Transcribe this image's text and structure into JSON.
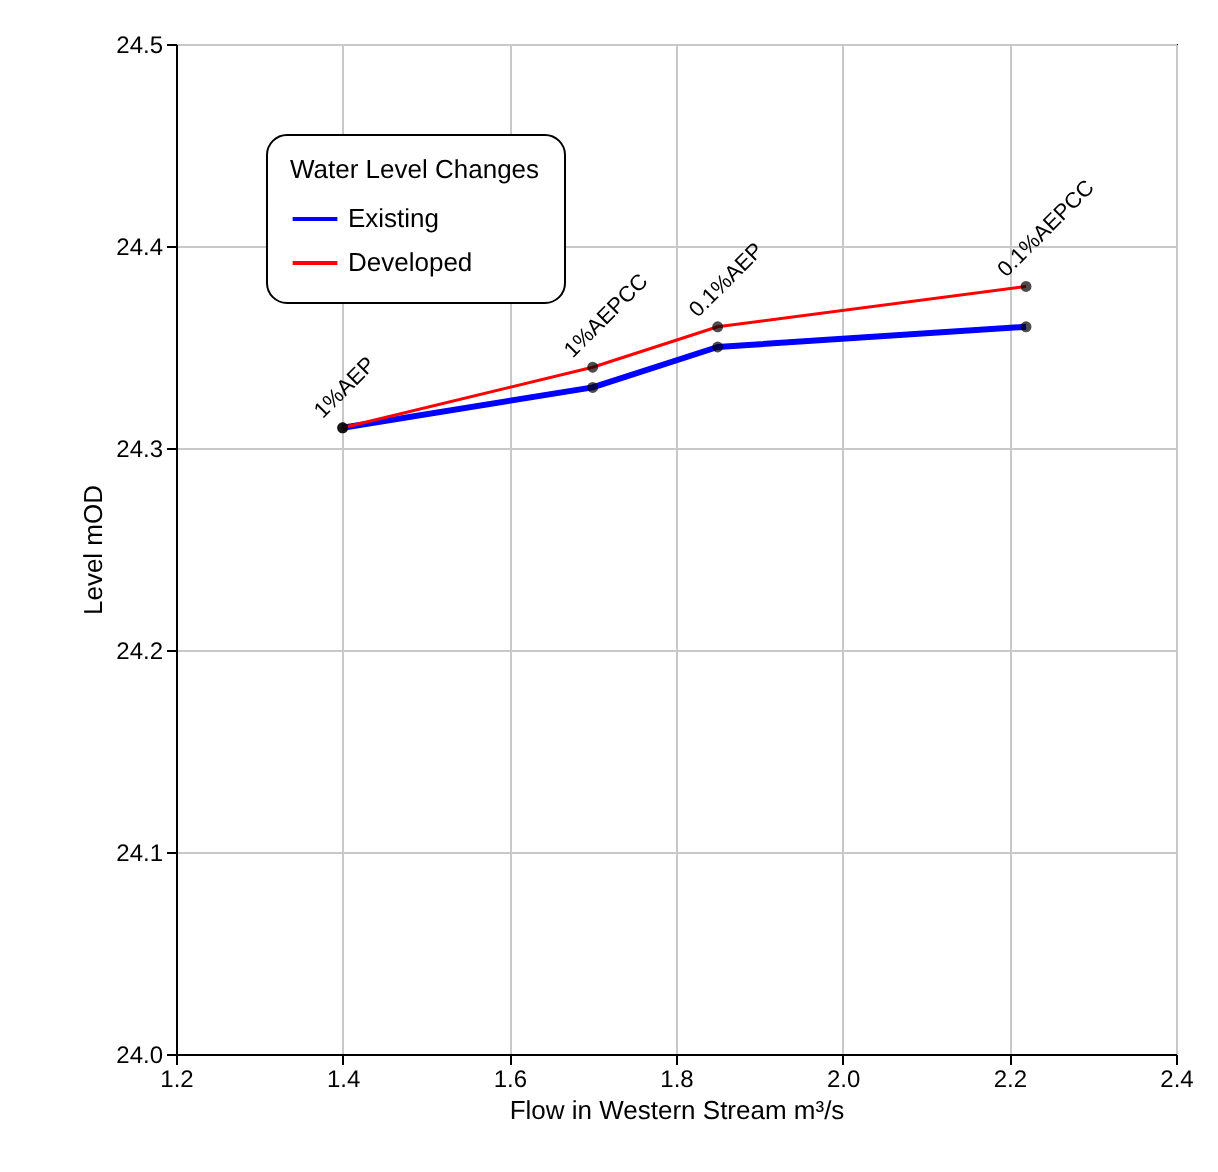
{
  "chart_data": {
    "type": "line",
    "xlabel": "Flow in Western Stream m³/s",
    "ylabel": "Level mOD",
    "legend_title": "Water Level Changes",
    "x": [
      1.4,
      1.7,
      1.85,
      2.22
    ],
    "series": [
      {
        "name": "Existing",
        "color": "#0000ff",
        "values": [
          24.31,
          24.33,
          24.35,
          24.36
        ]
      },
      {
        "name": "Developed",
        "color": "#ff0000",
        "values": [
          24.31,
          24.34,
          24.36,
          24.38
        ]
      }
    ],
    "annotations": [
      {
        "text": "1%AEP",
        "x": 1.4,
        "y": 24.31
      },
      {
        "text": "1%AEPCC",
        "x": 1.7,
        "y": 24.34
      },
      {
        "text": "0.1%AEP",
        "x": 1.85,
        "y": 24.36
      },
      {
        "text": "0.1%AEPCC",
        "x": 2.22,
        "y": 24.38
      }
    ],
    "xlim": [
      1.2,
      2.4
    ],
    "xticks": [
      1.2,
      1.4,
      1.6,
      1.8,
      {
        "value": 2,
        "label": "2.0"
      },
      2.2,
      2.4
    ],
    "ylim": [
      24,
      24.5
    ],
    "yticks": [
      {
        "value": 24,
        "label": "24.0"
      },
      24.1,
      24.2,
      24.3,
      24.4,
      24.5
    ],
    "grid": true,
    "legend": "top left",
    "marker": "circle",
    "line_style": "solid"
  }
}
